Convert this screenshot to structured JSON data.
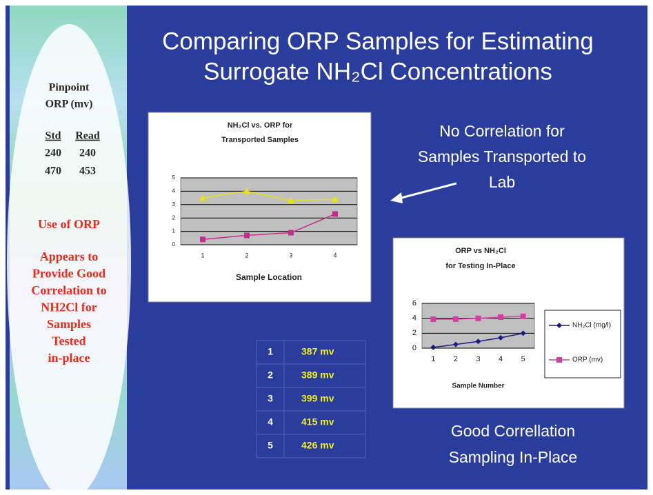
{
  "slide": {
    "title": [
      "Comparing ORP Samples for Estimating",
      "Surrogate NH₂Cl Concentrations"
    ],
    "sidebar": {
      "heading": [
        "Pinpoint",
        "ORP (mv)"
      ],
      "table": {
        "columns": [
          "Std",
          "Read"
        ],
        "rows": [
          [
            240,
            240
          ],
          [
            470,
            453
          ]
        ]
      },
      "notes": [
        [
          "Use of ORP"
        ],
        [
          "Appears to",
          "Provide Good",
          "Correlation to",
          "NH2Cl for",
          "Samples",
          "Tested",
          "in-place"
        ]
      ]
    },
    "annotation": [
      "No Correlation for",
      "Samples Transported to",
      "Lab"
    ],
    "readings": {
      "rows": [
        [
          1,
          "387 mv"
        ],
        [
          2,
          "389 mv"
        ],
        [
          3,
          "399 mv"
        ],
        [
          4,
          "415 mv"
        ],
        [
          5,
          "426 mv"
        ]
      ]
    },
    "caption": [
      "Good Correllation",
      "Sampling In-Place"
    ]
  },
  "chart_data": [
    {
      "type": "line",
      "title": [
        "NH₂Cl vs. ORP for",
        "Transported Samples"
      ],
      "x_label": "Sample Location",
      "categories": [
        "1",
        "2",
        "3",
        "4"
      ],
      "series": [
        {
          "color": "#e8e020",
          "marker": "triangle",
          "values": [
            3.5,
            4.0,
            3.3,
            3.4
          ]
        },
        {
          "color": "#c0308a",
          "marker": "square",
          "values": [
            0.4,
            0.7,
            0.9,
            2.3
          ]
        }
      ],
      "ylim": [
        0,
        5
      ],
      "yticks": [
        0,
        1,
        2,
        3,
        4,
        5
      ],
      "grid": true
    },
    {
      "type": "line",
      "title": [
        "ORP vs NH₂Cl",
        "for Testing In-Place"
      ],
      "x_label": "Sample Number",
      "categories": [
        "1",
        "2",
        "3",
        "4",
        "5"
      ],
      "series": [
        {
          "name": "NH₂Cl (mg/l)",
          "color": "#1a1a80",
          "marker": "diamond",
          "values": [
            0.1,
            0.5,
            0.9,
            1.4,
            2.0
          ]
        },
        {
          "name": "ORP (mv)",
          "color": "#d040a0",
          "marker": "square",
          "values": [
            3.87,
            3.89,
            3.99,
            4.15,
            4.26
          ]
        }
      ],
      "ylim": [
        0,
        6
      ],
      "yticks": [
        0,
        2,
        4,
        6
      ],
      "grid": true,
      "legend": "right"
    }
  ]
}
